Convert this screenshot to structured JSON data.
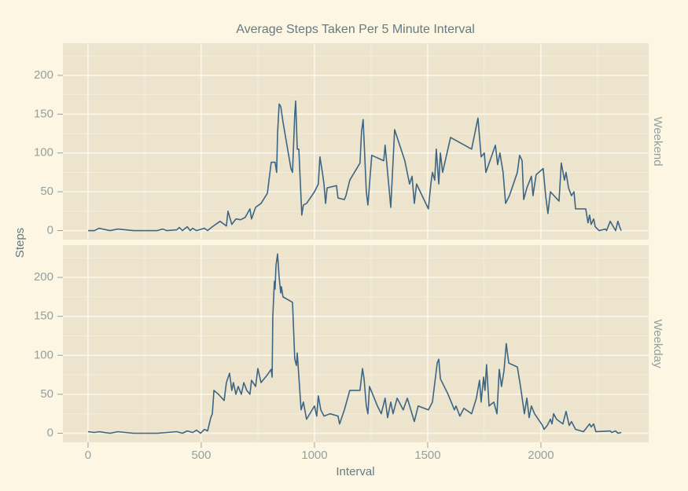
{
  "chart_data": {
    "type": "line",
    "title": "Average Steps Taken Per 5 Minute Interval",
    "xlabel": "Interval",
    "ylabel": "Steps",
    "color": "#3d6584",
    "grid": true,
    "xlim": [
      -111,
      2476
    ],
    "xticks": [
      0,
      500,
      1000,
      1500,
      2000
    ],
    "x_minor_ticks": [
      250,
      750,
      1250,
      1750,
      2250
    ],
    "ylim": [
      -11.6,
      241.4
    ],
    "yticks": [
      0,
      50,
      100,
      150,
      200
    ],
    "y_minor_ticks": [
      25,
      75,
      125,
      175,
      225
    ],
    "panels": [
      {
        "label": "Weekend",
        "x": [
          0,
          28,
          49,
          97,
          132,
          201,
          306,
          330,
          347,
          392,
          403,
          417,
          438,
          451,
          462,
          479,
          514,
          528,
          549,
          583,
          611,
          618,
          635,
          653,
          674,
          694,
          715,
          722,
          740,
          764,
          792,
          809,
          826,
          833,
          837,
          844,
          851,
          861,
          896,
          903,
          913,
          917,
          924,
          931,
          941,
          944,
          951,
          965,
          1000,
          1017,
          1024,
          1035,
          1042,
          1049,
          1056,
          1097,
          1104,
          1132,
          1139,
          1156,
          1201,
          1208,
          1215,
          1229,
          1236,
          1253,
          1306,
          1312,
          1337,
          1354,
          1399,
          1420,
          1431,
          1441,
          1451,
          1503,
          1514,
          1521,
          1531,
          1538,
          1549,
          1556,
          1566,
          1601,
          1694,
          1722,
          1736,
          1750,
          1757,
          1799,
          1809,
          1819,
          1833,
          1844,
          1861,
          1896,
          1906,
          1917,
          1924,
          1938,
          1958,
          1965,
          1979,
          2010,
          2021,
          2031,
          2042,
          2080,
          2090,
          2104,
          2111,
          2122,
          2135,
          2146,
          2153,
          2198,
          2208,
          2215,
          2222,
          2233,
          2240,
          2250,
          2257,
          2285,
          2290,
          2306,
          2320,
          2330,
          2340,
          2350,
          2355
        ],
        "values": [
          0,
          0,
          3,
          0,
          2,
          0,
          0,
          2,
          0,
          1,
          4,
          0,
          5,
          0,
          3,
          0,
          3,
          0,
          5,
          12,
          6,
          25,
          8,
          15,
          14,
          17,
          28,
          15,
          30,
          35,
          48,
          88,
          88,
          75,
          125,
          163,
          160,
          140,
          80,
          75,
          150,
          167,
          105,
          105,
          40,
          20,
          33,
          35,
          50,
          60,
          95,
          75,
          60,
          35,
          55,
          58,
          42,
          40,
          45,
          65,
          87,
          128,
          143,
          50,
          33,
          97,
          90,
          110,
          30,
          130,
          90,
          60,
          70,
          35,
          60,
          28,
          60,
          75,
          65,
          105,
          60,
          100,
          75,
          120,
          105,
          145,
          95,
          100,
          75,
          110,
          85,
          100,
          75,
          35,
          45,
          75,
          97,
          90,
          40,
          55,
          70,
          45,
          72,
          80,
          45,
          22,
          50,
          38,
          87,
          65,
          75,
          55,
          45,
          50,
          28,
          28,
          10,
          20,
          8,
          15,
          5,
          2,
          0,
          2,
          0,
          12,
          5,
          0,
          12,
          3,
          0
        ]
      },
      {
        "label": "Weekday",
        "x": [
          0,
          28,
          49,
          97,
          132,
          201,
          306,
          392,
          417,
          438,
          462,
          479,
          497,
          514,
          528,
          542,
          549,
          556,
          576,
          601,
          611,
          625,
          635,
          642,
          653,
          663,
          677,
          688,
          701,
          715,
          722,
          740,
          750,
          764,
          792,
          809,
          813,
          816,
          823,
          826,
          830,
          837,
          844,
          851,
          854,
          861,
          903,
          913,
          920,
          924,
          934,
          941,
          951,
          965,
          1000,
          1010,
          1017,
          1028,
          1042,
          1069,
          1104,
          1111,
          1132,
          1156,
          1201,
          1212,
          1219,
          1229,
          1236,
          1243,
          1278,
          1295,
          1312,
          1323,
          1337,
          1347,
          1365,
          1392,
          1410,
          1441,
          1458,
          1503,
          1521,
          1542,
          1549,
          1556,
          1590,
          1618,
          1625,
          1642,
          1660,
          1694,
          1715,
          1729,
          1736,
          1747,
          1753,
          1760,
          1771,
          1792,
          1806,
          1816,
          1826,
          1837,
          1847,
          1858,
          1896,
          1910,
          1927,
          1938,
          1948,
          1958,
          1972,
          2007,
          2014,
          2028,
          2042,
          2049,
          2056,
          2069,
          2097,
          2111,
          2125,
          2135,
          2153,
          2188,
          2215,
          2222,
          2233,
          2243,
          2306,
          2313,
          2330,
          2340,
          2355
        ],
        "values": [
          2,
          1,
          2,
          0,
          2,
          0,
          0,
          2,
          0,
          3,
          1,
          4,
          0,
          5,
          3,
          20,
          25,
          55,
          50,
          42,
          65,
          77,
          55,
          65,
          50,
          60,
          50,
          65,
          55,
          50,
          68,
          60,
          83,
          65,
          75,
          82,
          72,
          150,
          195,
          185,
          215,
          230,
          200,
          180,
          188,
          175,
          168,
          95,
          87,
          103,
          60,
          30,
          40,
          18,
          35,
          22,
          48,
          30,
          22,
          25,
          22,
          12,
          30,
          55,
          55,
          83,
          70,
          35,
          25,
          60,
          35,
          25,
          45,
          20,
          40,
          25,
          45,
          30,
          45,
          15,
          35,
          30,
          40,
          90,
          95,
          70,
          50,
          30,
          35,
          22,
          32,
          25,
          45,
          68,
          40,
          72,
          55,
          88,
          35,
          40,
          25,
          82,
          60,
          80,
          115,
          90,
          85,
          60,
          25,
          45,
          20,
          35,
          25,
          10,
          5,
          10,
          18,
          12,
          25,
          18,
          12,
          28,
          10,
          15,
          5,
          2,
          12,
          8,
          12,
          2,
          3,
          1,
          3,
          0,
          1
        ]
      }
    ]
  }
}
